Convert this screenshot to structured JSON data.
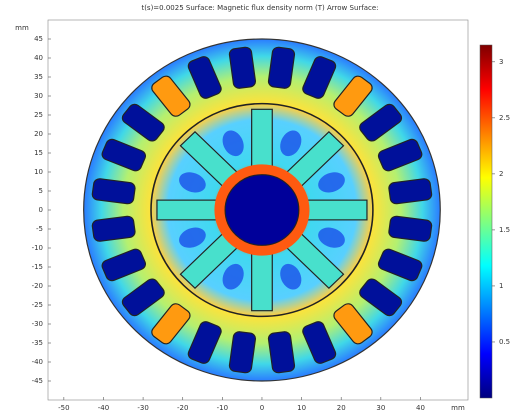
{
  "chart_data": {
    "type": "surface",
    "title": "t(s)=0.0025  Surface: Magnetic flux density norm (T)  Arrow Surface:",
    "x_label": "mm",
    "y_label": "mm",
    "xlim": [
      -54,
      52
    ],
    "ylim": [
      -50,
      50
    ],
    "xticks": [
      -50,
      -40,
      -30,
      -20,
      -10,
      0,
      10,
      20,
      30,
      40
    ],
    "yticks": [
      -45,
      -40,
      -35,
      -30,
      -25,
      -20,
      -15,
      -10,
      -5,
      0,
      5,
      10,
      15,
      20,
      25,
      30,
      35,
      40,
      45
    ],
    "colorbar": {
      "lim": [
        0,
        3.15
      ],
      "ticks": [
        0.5,
        1,
        1.5,
        2,
        2.5,
        3
      ],
      "colormap": "jet"
    }
  }
}
